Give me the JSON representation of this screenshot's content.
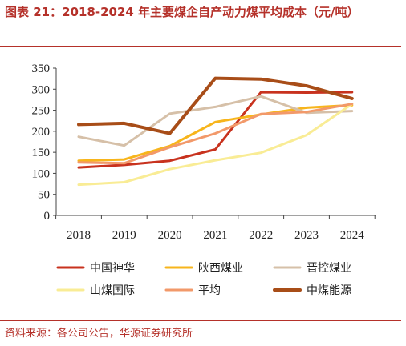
{
  "title": "图表 21：2018-2024 年主要煤企自产动力煤平均成本（元/吨）",
  "source": "资料来源：各公司公告，华源证券研究所",
  "chart_data": {
    "type": "line",
    "x": [
      "2018",
      "2019",
      "2020",
      "2021",
      "2022",
      "2023",
      "2024"
    ],
    "ylim": [
      0,
      350
    ],
    "yticks": [
      0,
      50,
      100,
      150,
      200,
      250,
      300,
      350
    ],
    "grid": false,
    "legend_position": "bottom",
    "series": [
      {
        "name": "中国神华",
        "color": "#c8321e",
        "values": [
          114,
          120,
          130,
          157,
          293,
          292,
          293
        ]
      },
      {
        "name": "陕西煤业",
        "color": "#f7b51c",
        "values": [
          130,
          133,
          165,
          222,
          240,
          256,
          262
        ]
      },
      {
        "name": "晋控煤业",
        "color": "#d6c0a8",
        "values": [
          187,
          166,
          242,
          258,
          283,
          244,
          248
        ]
      },
      {
        "name": "山煤国际",
        "color": "#f9ec95",
        "values": [
          73,
          79,
          110,
          131,
          149,
          191,
          265
        ]
      },
      {
        "name": "平均",
        "color": "#f2996a",
        "values": [
          126,
          124,
          162,
          195,
          241,
          246,
          265
        ]
      },
      {
        "name": "中煤能源",
        "color": "#a84d18",
        "values": [
          216,
          219,
          195,
          326,
          324,
          308,
          278
        ]
      }
    ]
  }
}
